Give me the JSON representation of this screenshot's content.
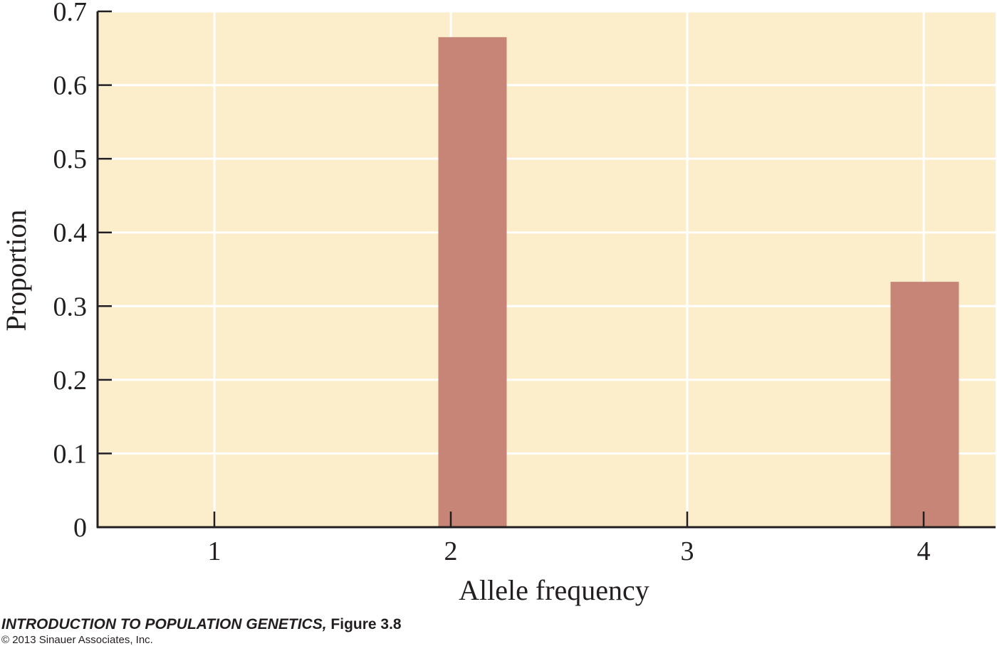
{
  "chart_data": {
    "type": "bar",
    "categories": [
      "1",
      "2",
      "3",
      "4"
    ],
    "values": [
      0,
      0.665,
      0,
      0.333
    ],
    "xlabel": "Allele frequency",
    "ylabel": "Proportion",
    "ylim": [
      0,
      0.7
    ],
    "yticks": [
      0,
      0.1,
      0.2,
      0.3,
      0.4,
      0.5,
      0.6,
      0.7
    ],
    "ytick_labels": [
      "0",
      "0.1",
      "0.2",
      "0.3",
      "0.4",
      "0.5",
      "0.6",
      "0.7"
    ],
    "grid": true,
    "colors": {
      "background": "#fdeecb",
      "bar": "#c68577",
      "grid": "#ffffff",
      "axis": "#231f20"
    }
  },
  "credit": {
    "book_title": "INTRODUCTION TO POPULATION GENETICS,",
    "figure_label": " Figure 3.8",
    "copyright": "© 2013 Sinauer Associates, Inc."
  }
}
